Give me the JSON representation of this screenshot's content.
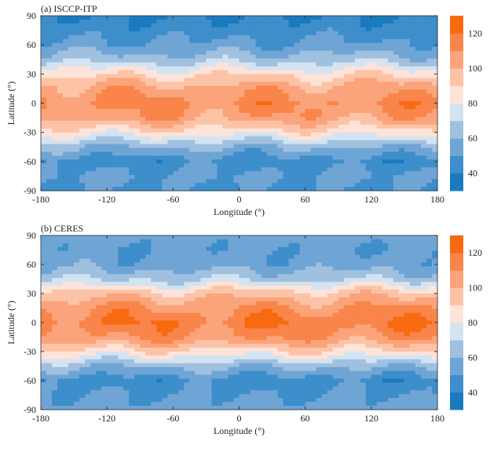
{
  "chart_data": [
    {
      "type": "heatmap",
      "title": "(a) ISCCP-ITP",
      "xlabel": "Longitude (°)",
      "ylabel": "Latitude (°)",
      "xlim": [
        -180,
        180
      ],
      "ylim": [
        -90,
        90
      ],
      "xticks": [
        -180,
        -120,
        -60,
        0,
        60,
        120,
        180
      ],
      "yticks": [
        90,
        60,
        30,
        0,
        -30,
        -60,
        -90
      ],
      "colorbar": {
        "range": [
          30,
          130
        ],
        "step": 10,
        "ticks": [
          40,
          60,
          80,
          100,
          120
        ]
      },
      "zonal_mean": {
        "lat": [
          90,
          75,
          60,
          45,
          30,
          15,
          0,
          -15,
          -30,
          -45,
          -60,
          -75,
          -90
        ],
        "value": [
          40,
          45,
          52,
          65,
          88,
          105,
          112,
          106,
          85,
          60,
          45,
          52,
          48
        ]
      }
    },
    {
      "type": "heatmap",
      "title": "(b) CERES",
      "xlabel": "Longitude (°)",
      "ylabel": "Latitude (°)",
      "xlim": [
        -180,
        180
      ],
      "ylim": [
        -90,
        90
      ],
      "xticks": [
        -180,
        -120,
        -60,
        0,
        60,
        120,
        180
      ],
      "yticks": [
        90,
        60,
        30,
        0,
        -30,
        -60,
        -90
      ],
      "colorbar": {
        "range": [
          30,
          130
        ],
        "step": 10,
        "ticks": [
          40,
          60,
          80,
          100,
          120
        ]
      },
      "zonal_mean": {
        "lat": [
          90,
          75,
          60,
          45,
          30,
          15,
          0,
          -15,
          -30,
          -45,
          -60,
          -75,
          -90
        ],
        "value": [
          55,
          52,
          55,
          68,
          95,
          110,
          118,
          110,
          88,
          62,
          45,
          50,
          55
        ]
      }
    }
  ],
  "colormap": [
    "#1a7abf",
    "#3d8ecb",
    "#6fa5d5",
    "#a0c0e0",
    "#d4e3f1",
    "#fde3d8",
    "#fcc3a7",
    "#fba47b",
    "#f9854a",
    "#f76a10"
  ],
  "coastline_color": "#1f6fb8"
}
